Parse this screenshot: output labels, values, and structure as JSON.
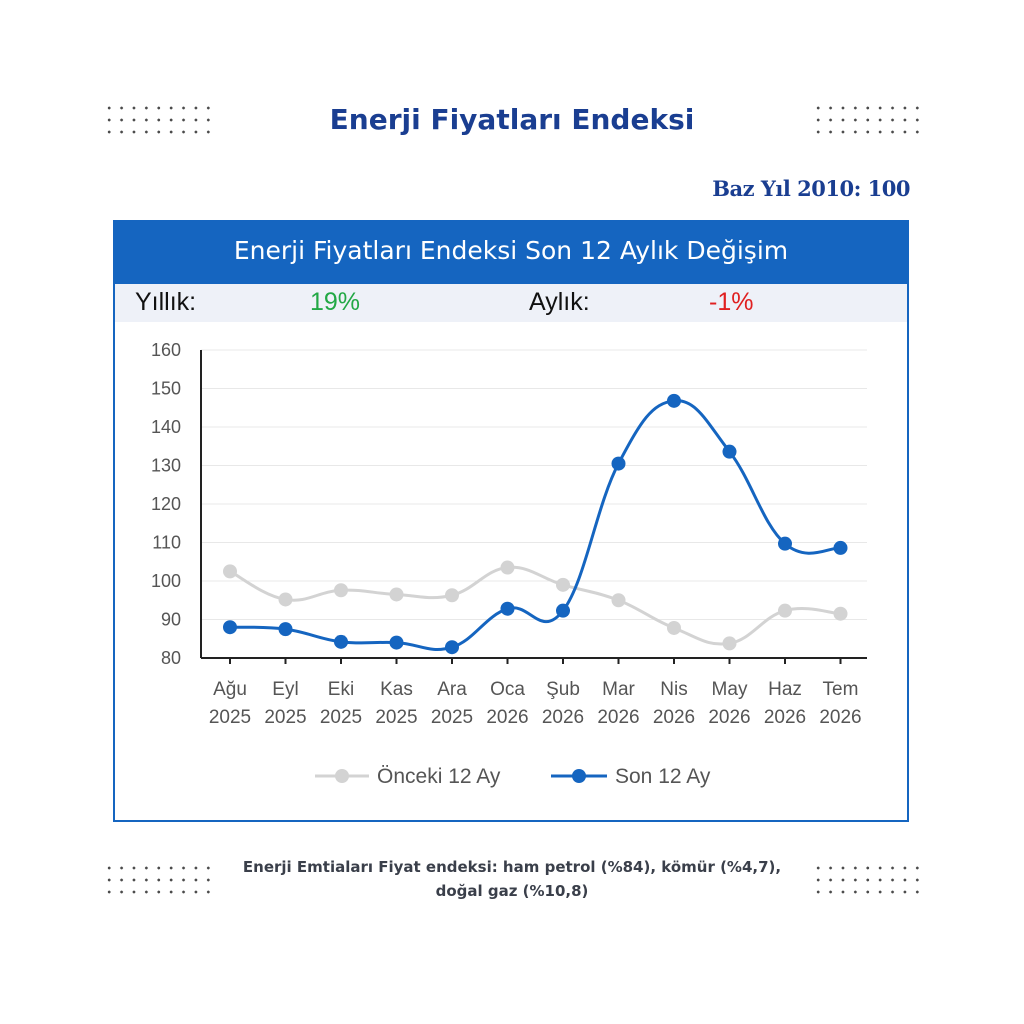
{
  "title": "Enerji Fiyatları Endeksi",
  "base_year": "Baz Yıl 2010: 100",
  "card": {
    "header": "Enerji Fiyatları Endeksi Son 12 Aylık Değişim",
    "yearly_label": "Yıllık:",
    "yearly_value": "19%",
    "monthly_label": "Aylık:",
    "monthly_value": "-1%"
  },
  "footnote": {
    "line1": "Enerji Emtiaları Fiyat endeksi: ham petrol (%84), kömür (%4,7),",
    "line2": "doğal gaz (%10,8)"
  },
  "colors": {
    "brand": "#1a3e91",
    "header_bg": "#1565c0",
    "positive": "#22a845",
    "negative": "#e02020",
    "series_current": "#1565c0",
    "series_previous": "#d3d3d3"
  },
  "chart_data": {
    "type": "line",
    "categories": [
      [
        "Ağu",
        "2025"
      ],
      [
        "Eyl",
        "2025"
      ],
      [
        "Eki",
        "2025"
      ],
      [
        "Kas",
        "2025"
      ],
      [
        "Ara",
        "2025"
      ],
      [
        "Oca",
        "2026"
      ],
      [
        "Şub",
        "2026"
      ],
      [
        "Mar",
        "2026"
      ],
      [
        "Nis",
        "2026"
      ],
      [
        "May",
        "2026"
      ],
      [
        "Haz",
        "2026"
      ],
      [
        "Tem",
        "2026"
      ]
    ],
    "ylim": [
      80,
      160
    ],
    "yticks": [
      80,
      90,
      100,
      110,
      120,
      130,
      140,
      150,
      160
    ],
    "grid": true,
    "smooth": true,
    "legend": "bottom",
    "series": [
      {
        "name": "Önceki 12 Ay",
        "color": "#d3d3d3",
        "values": [
          102.5,
          95.2,
          97.6,
          96.5,
          96.3,
          103.5,
          99.0,
          95.0,
          87.8,
          83.8,
          92.3,
          91.5
        ]
      },
      {
        "name": "Son 12 Ay",
        "color": "#1565c0",
        "values": [
          88.0,
          87.5,
          84.2,
          84.0,
          82.8,
          92.8,
          92.3,
          130.5,
          146.8,
          133.6,
          109.7,
          108.6
        ]
      }
    ]
  }
}
